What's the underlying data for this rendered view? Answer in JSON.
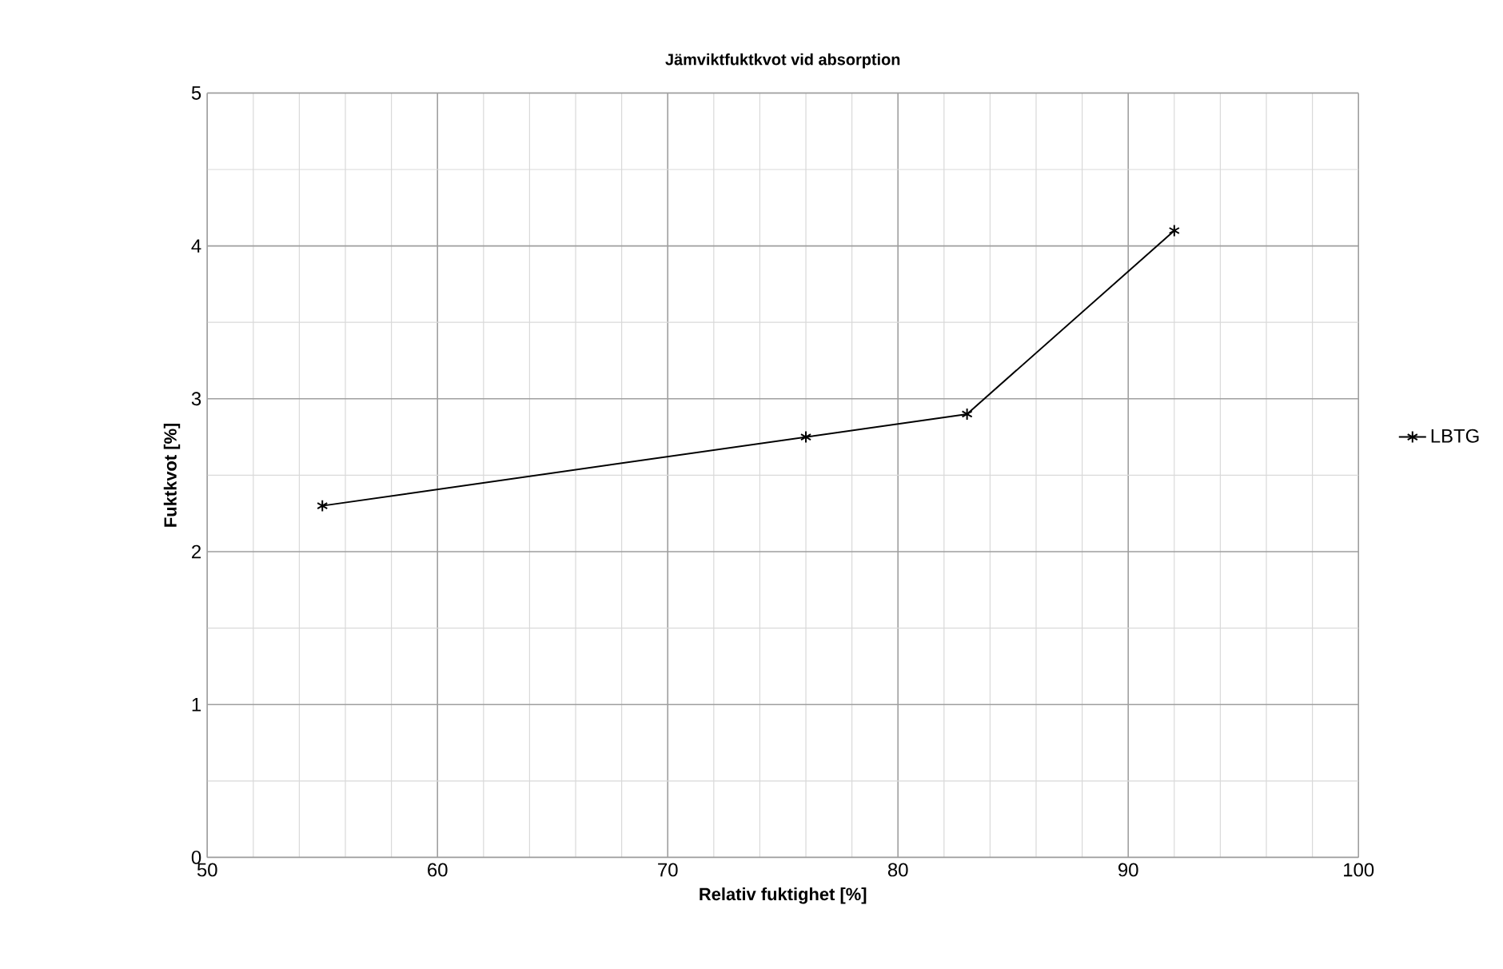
{
  "chart_data": {
    "type": "line",
    "title": "Jämviktfuktkvot vid absorption",
    "xlabel": "Relativ fuktighet [%]",
    "ylabel": "Fuktkvot [%]",
    "x": [
      55,
      76,
      83,
      92
    ],
    "series": [
      {
        "name": "LBTG",
        "color": "#000000",
        "values": [
          2.3,
          2.75,
          2.9,
          4.1
        ]
      }
    ],
    "xlim": [
      50,
      100
    ],
    "xticks": [
      50,
      60,
      70,
      80,
      90,
      100
    ],
    "ylim": [
      0,
      5
    ],
    "yticks": [
      0,
      1,
      2,
      3,
      4,
      5
    ],
    "grid": true,
    "legend": "right",
    "marker": "cross",
    "line_style": "solid"
  }
}
